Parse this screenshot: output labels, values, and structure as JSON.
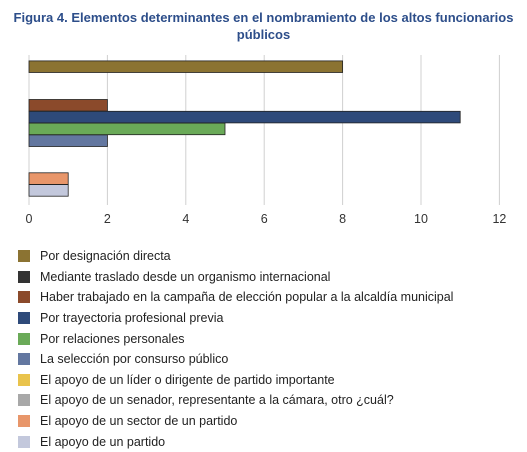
{
  "chart_data": {
    "type": "bar",
    "orientation": "horizontal",
    "title": "Figura 4. Elementos determinantes en el nombramiento de los altos funcionarios públicos",
    "xlim": [
      0,
      12
    ],
    "xticks": [
      0,
      2,
      4,
      6,
      8,
      10,
      12
    ],
    "grid": true,
    "legend_position": "bottom",
    "series": [
      {
        "name": "Por designación directa",
        "color": "#8b7332",
        "value": 8
      },
      {
        "name": "Mediante traslado desde un organismo internacional",
        "color": "#333333",
        "value": 0
      },
      {
        "name": "Haber trabajado en la campaña de elección popular a la alcaldía municipal",
        "color": "#8b4a2b",
        "value": 2
      },
      {
        "name": "Por trayectoria profesional previa",
        "color": "#2e4a7a",
        "value": 11
      },
      {
        "name": "Por relaciones personales",
        "color": "#6aaa58",
        "value": 5
      },
      {
        "name": "La selección por consurso público",
        "color": "#6377a0",
        "value": 2
      },
      {
        "name": "El apoyo de un líder o dirigente de partido importante",
        "color": "#e9c34c",
        "value": 0
      },
      {
        "name": "El apoyo de un senador, representante a la cámara, otro ¿cuál?",
        "color": "#a8a8a8",
        "value": 0
      },
      {
        "name": "El apoyo de un sector de un partido",
        "color": "#e8966a",
        "value": 1
      },
      {
        "name": "El apoyo de un partido",
        "color": "#c3c8dc",
        "value": 1
      }
    ]
  }
}
